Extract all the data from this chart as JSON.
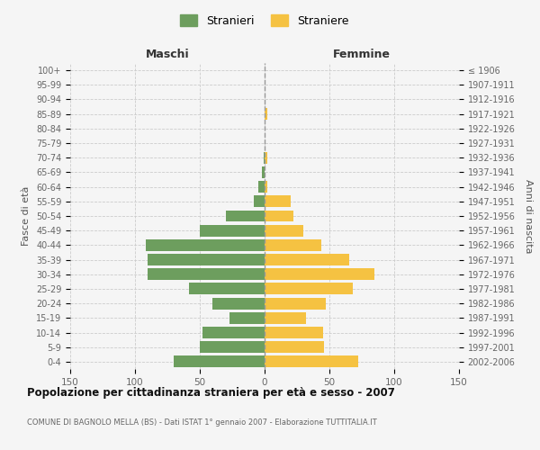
{
  "age_groups": [
    "0-4",
    "5-9",
    "10-14",
    "15-19",
    "20-24",
    "25-29",
    "30-34",
    "35-39",
    "40-44",
    "45-49",
    "50-54",
    "55-59",
    "60-64",
    "65-69",
    "70-74",
    "75-79",
    "80-84",
    "85-89",
    "90-94",
    "95-99",
    "100+"
  ],
  "birth_years": [
    "2002-2006",
    "1997-2001",
    "1992-1996",
    "1987-1991",
    "1982-1986",
    "1977-1981",
    "1972-1976",
    "1967-1971",
    "1962-1966",
    "1957-1961",
    "1952-1956",
    "1947-1951",
    "1942-1946",
    "1937-1941",
    "1932-1936",
    "1927-1931",
    "1922-1926",
    "1917-1921",
    "1912-1916",
    "1907-1911",
    "≤ 1906"
  ],
  "males": [
    70,
    50,
    48,
    27,
    40,
    58,
    90,
    90,
    92,
    50,
    30,
    8,
    5,
    2,
    1,
    0,
    0,
    0,
    0,
    0,
    0
  ],
  "females": [
    72,
    46,
    45,
    32,
    47,
    68,
    85,
    65,
    44,
    30,
    22,
    20,
    2,
    0,
    2,
    0,
    0,
    2,
    0,
    0,
    0
  ],
  "male_color": "#6d9e5e",
  "female_color": "#f5c242",
  "background_color": "#f5f5f5",
  "grid_color": "#cccccc",
  "title": "Popolazione per cittadinanza straniera per età e sesso - 2007",
  "subtitle": "COMUNE DI BAGNOLO MELLA (BS) - Dati ISTAT 1° gennaio 2007 - Elaborazione TUTTITALIA.IT",
  "label_left": "Maschi",
  "label_right": "Femmine",
  "ylabel_left": "Fasce di età",
  "ylabel_right": "Anni di nascita",
  "legend_male": "Stranieri",
  "legend_female": "Straniere",
  "xlim": 150,
  "xticks": [
    -150,
    -100,
    -50,
    0,
    50,
    100,
    150
  ]
}
